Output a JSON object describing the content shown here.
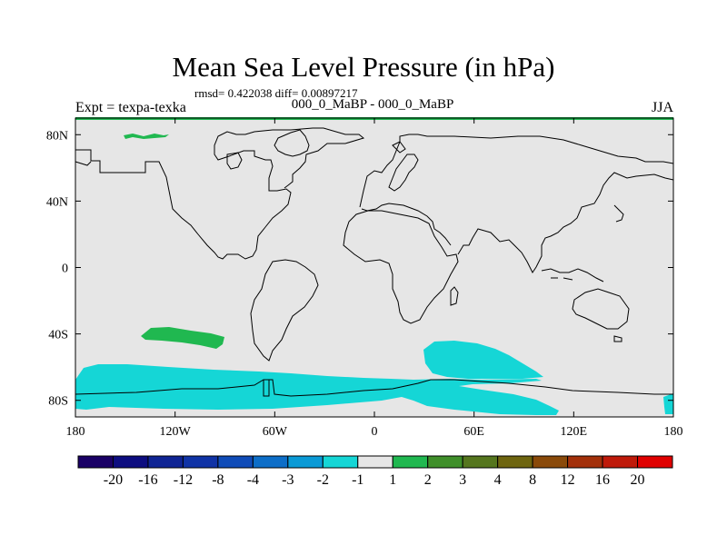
{
  "chart_data": {
    "type": "map-contour",
    "title": "Mean Sea Level Pressure (in hPa)",
    "stats": "rmsd= 0.422038 diff= 0.00897217",
    "subtitle": "000_0_MaBP - 000_0_MaBP",
    "left_label": "Expt = texpa-texka",
    "right_label": "JJA",
    "x_ticks": [
      "180",
      "120W",
      "60W",
      "0",
      "60E",
      "120E",
      "180"
    ],
    "y_ticks": [
      "80N",
      "40N",
      "0",
      "40S",
      "80S"
    ],
    "lon_range": [
      -180,
      180
    ],
    "lat_range": [
      -90,
      90
    ],
    "colorbar": {
      "labels": [
        "-20",
        "-16",
        "-12",
        "-8",
        "-4",
        "-3",
        "-2",
        "-1",
        "1",
        "2",
        "3",
        "4",
        "8",
        "12",
        "16",
        "20"
      ],
      "colors": [
        "#1a0066",
        "#0d0d80",
        "#0f2494",
        "#1033a6",
        "#104cb8",
        "#0d6ec8",
        "#0a9ad6",
        "#15d6d6",
        "#e6e6e6",
        "#20b850",
        "#3f8f2a",
        "#55761e",
        "#6e6510",
        "#8a4a0a",
        "#a3300a",
        "#bf1a0a",
        "#e00000"
      ]
    },
    "anomaly_regions": [
      {
        "name": "arctic-positive",
        "class": "2",
        "color": "#20b850"
      },
      {
        "name": "south-pacific-positive",
        "class": "2",
        "color": "#20b850"
      },
      {
        "name": "southern-ocean-negative",
        "class": "-1",
        "color": "#15d6d6"
      },
      {
        "name": "south-indian-negative",
        "class": "-1",
        "color": "#15d6d6"
      }
    ]
  }
}
